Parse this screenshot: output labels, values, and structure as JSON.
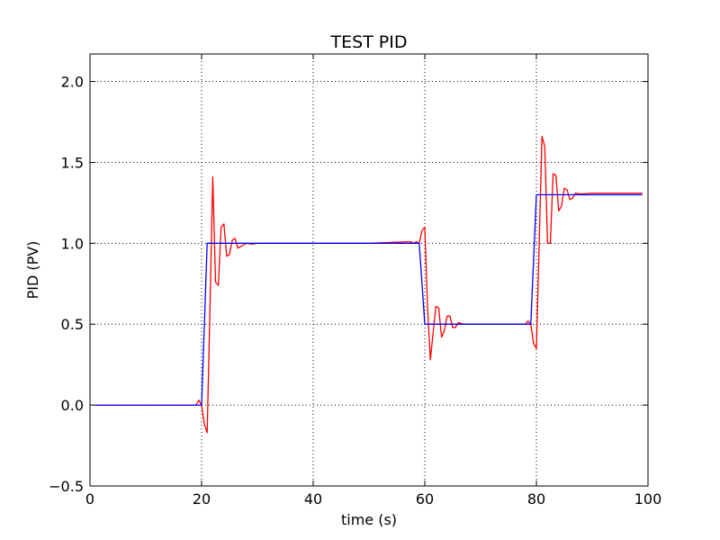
{
  "chart_data": {
    "type": "line",
    "title": "TEST PID",
    "xlabel": "time (s)",
    "ylabel": "PID (PV)",
    "xlim": [
      0,
      100
    ],
    "ylim": [
      -0.5,
      2.17
    ],
    "xticks": [
      0,
      20,
      40,
      60,
      80,
      100
    ],
    "xtick_labels": [
      "0",
      "20",
      "40",
      "60",
      "80",
      "100"
    ],
    "yticks": [
      -0.5,
      0.0,
      0.5,
      1.0,
      1.5,
      2.0
    ],
    "ytick_labels": [
      "−0.5",
      "0.0",
      "0.5",
      "1.0",
      "1.5",
      "2.0"
    ],
    "grid": true,
    "legend": "none",
    "series": [
      {
        "color": "#ff0000",
        "x": [
          1,
          19,
          19.5,
          20,
          20.5,
          21,
          21.5,
          22,
          22.5,
          23,
          23.5,
          24,
          24.5,
          25,
          25.5,
          26,
          26.5,
          27,
          28,
          29,
          30,
          40,
          50,
          57.5,
          58,
          58.5,
          59,
          59.5,
          60,
          60.5,
          61,
          61.5,
          62,
          62.5,
          63,
          63.5,
          64,
          64.5,
          65,
          65.5,
          66,
          67,
          68,
          70,
          78,
          78.5,
          79,
          79.5,
          80,
          80.5,
          81,
          81.5,
          82,
          82.5,
          83,
          83.5,
          84,
          84.5,
          85,
          85.5,
          86,
          86.5,
          87,
          88,
          90,
          99
        ],
        "values": [
          0,
          0,
          0.03,
          0.0,
          -0.12,
          -0.17,
          0.6,
          1.41,
          0.76,
          0.74,
          1.1,
          1.12,
          0.92,
          0.93,
          1.02,
          1.03,
          0.97,
          0.98,
          1.0,
          0.995,
          1.0,
          1.0,
          1.0,
          1.01,
          1.0,
          1.01,
          1.0,
          1.08,
          1.1,
          0.6,
          0.28,
          0.45,
          0.61,
          0.6,
          0.42,
          0.46,
          0.55,
          0.55,
          0.48,
          0.48,
          0.51,
          0.5,
          0.5,
          0.5,
          0.5,
          0.52,
          0.5,
          0.38,
          0.35,
          1.0,
          1.66,
          1.6,
          1.0,
          1.0,
          1.43,
          1.42,
          1.2,
          1.23,
          1.34,
          1.33,
          1.27,
          1.28,
          1.31,
          1.305,
          1.31,
          1.31
        ]
      },
      {
        "color": "#0000ff",
        "x": [
          1,
          19,
          20,
          21,
          58,
          59,
          60,
          79,
          80,
          99
        ],
        "values": [
          0,
          0,
          0,
          1.0,
          1.0,
          1.0,
          0.5,
          0.5,
          1.3,
          1.3
        ]
      }
    ]
  }
}
